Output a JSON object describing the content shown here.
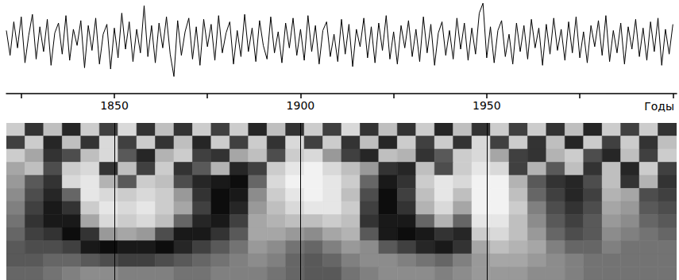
{
  "chart_data": [
    {
      "type": "line",
      "x": [
        1821,
        1822,
        1823,
        1824,
        1825,
        1826,
        1827,
        1828,
        1829,
        1830,
        1831,
        1832,
        1833,
        1834,
        1835,
        1836,
        1837,
        1838,
        1839,
        1840,
        1841,
        1842,
        1843,
        1844,
        1845,
        1846,
        1847,
        1848,
        1849,
        1850,
        1851,
        1852,
        1853,
        1854,
        1855,
        1856,
        1857,
        1858,
        1859,
        1860,
        1861,
        1862,
        1863,
        1864,
        1865,
        1866,
        1867,
        1868,
        1869,
        1870,
        1871,
        1872,
        1873,
        1874,
        1875,
        1876,
        1877,
        1878,
        1879,
        1880,
        1881,
        1882,
        1883,
        1884,
        1885,
        1886,
        1887,
        1888,
        1889,
        1890,
        1891,
        1892,
        1893,
        1894,
        1895,
        1896,
        1897,
        1898,
        1899,
        1900,
        1901,
        1902,
        1903,
        1904,
        1905,
        1906,
        1907,
        1908,
        1909,
        1910,
        1911,
        1912,
        1913,
        1914,
        1915,
        1916,
        1917,
        1918,
        1919,
        1920,
        1921,
        1922,
        1923,
        1924,
        1925,
        1926,
        1927,
        1928,
        1929,
        1930,
        1931,
        1932,
        1933,
        1934,
        1935,
        1936,
        1937,
        1938,
        1939,
        1940,
        1941,
        1942,
        1943,
        1944,
        1945,
        1946,
        1947,
        1948,
        1949,
        1950,
        1951,
        1952,
        1953,
        1954,
        1955,
        1956,
        1957,
        1958,
        1959,
        1960,
        1961,
        1962,
        1963,
        1964,
        1965,
        1966,
        1967,
        1968,
        1969,
        1970,
        1971,
        1972,
        1973,
        1974,
        1975,
        1976,
        1977,
        1978,
        1979,
        1980,
        1981,
        1982,
        1983,
        1984,
        1985,
        1986,
        1987,
        1988,
        1989,
        1990,
        1991,
        1992,
        1993,
        1994,
        1995,
        1996,
        1997,
        1998,
        1999,
        2000
      ],
      "values": [
        0.8,
        -1.2,
        1.5,
        -0.6,
        1.9,
        -1.8,
        0.4,
        2.1,
        -1.5,
        1.1,
        -0.9,
        1.7,
        -2.0,
        0.6,
        1.4,
        -1.1,
        2.0,
        -1.6,
        0.9,
        -0.4,
        1.6,
        -2.2,
        1.2,
        -0.8,
        1.8,
        -1.9,
        0.5,
        1.3,
        -2.3,
        1.0,
        -1.4,
        2.2,
        -0.7,
        1.5,
        -1.7,
        0.9,
        -1.0,
        2.8,
        -1.3,
        1.2,
        -1.8,
        1.4,
        -0.6,
        1.9,
        -1.1,
        -2.9,
        1.6,
        -1.2,
        0.7,
        1.8,
        -1.5,
        1.1,
        -2.0,
        1.7,
        -0.5,
        1.3,
        -1.6,
        2.0,
        -1.0,
        0.6,
        1.5,
        -1.9,
        0.8,
        -1.3,
        2.1,
        -0.9,
        1.0,
        -1.7,
        1.6,
        -0.4,
        -1.5,
        1.9,
        -1.0,
        0.7,
        -1.8,
        1.4,
        -0.6,
        1.8,
        -1.2,
        0.9,
        -1.6,
        2.0,
        -0.9,
        1.2,
        -1.9,
        0.8,
        1.5,
        -1.3,
        0.5,
        -1.7,
        1.7,
        -1.1,
        1.3,
        -2.1,
        0.9,
        -0.5,
        1.8,
        -1.4,
        1.1,
        -1.8,
        1.4,
        -0.8,
        2.0,
        -1.5,
        0.7,
        -1.9,
        1.2,
        -0.6,
        1.6,
        -1.3,
        0.9,
        -1.7,
        1.9,
        -1.0,
        1.3,
        -2.0,
        0.6,
        1.5,
        -1.2,
        0.8,
        -1.5,
        1.8,
        -0.7,
        1.4,
        -1.6,
        1.0,
        -1.1,
        2.2,
        3.0,
        -1.4,
        1.1,
        -1.8,
        0.8,
        1.6,
        -1.3,
        0.5,
        -1.9,
        1.4,
        -0.9,
        1.2,
        -1.5,
        1.7,
        -0.6,
        1.0,
        -2.0,
        1.3,
        -1.1,
        1.8,
        -0.8,
        0.9,
        -1.6,
        1.5,
        -1.0,
        1.9,
        -1.4,
        0.7,
        -1.8,
        1.2,
        -0.5,
        1.6,
        -1.2,
        2.0,
        -1.7,
        0.8,
        -1.0,
        1.4,
        -1.9,
        1.1,
        -0.7,
        1.7,
        -1.3,
        1.0,
        -1.6,
        1.5,
        -0.9,
        1.8,
        -2.0,
        0.9,
        -1.1,
        1.3
      ],
      "color": "#000000",
      "xlim": [
        1821,
        2001
      ],
      "xticks": [
        {
          "value": 1825,
          "label": null
        },
        1850,
        {
          "value": 1875,
          "label": null
        },
        1900,
        {
          "value": 1925,
          "label": null
        },
        1950,
        {
          "value": 1975,
          "label": null
        },
        {
          "value": 2000,
          "label": null
        }
      ],
      "x_label": "Годы",
      "ylim": [
        -3,
        3
      ],
      "tick_labels": "x"
    },
    {
      "type": "heatmap",
      "x_edges": [
        1821,
        1826,
        1831,
        1836,
        1841,
        1846,
        1851,
        1856,
        1861,
        1866,
        1871,
        1876,
        1881,
        1886,
        1891,
        1896,
        1901,
        1906,
        1911,
        1916,
        1921,
        1926,
        1931,
        1936,
        1941,
        1946,
        1951,
        1956,
        1961,
        1966,
        1971,
        1976,
        1981,
        1986,
        1991,
        1996,
        2001
      ],
      "y_edges": [
        0,
        1,
        2,
        3,
        4,
        5,
        6,
        7,
        8,
        9,
        10,
        11,
        12
      ],
      "cells": [
        [
          0.6,
          -0.6,
          0.5,
          -0.7,
          0.6,
          -0.5,
          0.7,
          -0.6,
          0.5,
          -0.6,
          0.6,
          -0.5,
          0.6,
          -0.7,
          0.5,
          -0.6,
          0.6,
          -0.5,
          0.7,
          -0.6,
          0.5,
          -0.6,
          0.6,
          -0.7,
          0.5,
          -0.6,
          0.6,
          -0.5,
          0.6,
          -0.6,
          0.5,
          -0.7,
          0.6,
          -0.5,
          0.6,
          -0.6
        ],
        [
          -0.5,
          0.6,
          -0.7,
          0.5,
          -0.6,
          0.7,
          -0.5,
          0.6,
          -0.6,
          0.5,
          -0.7,
          0.6,
          -0.5,
          0.6,
          -0.6,
          0.7,
          -0.5,
          0.6,
          -0.6,
          0.5,
          -0.7,
          0.6,
          -0.5,
          0.6,
          -0.6,
          0.7,
          -0.5,
          0.6,
          -0.6,
          0.5,
          -0.7,
          0.6,
          -0.5,
          0.6,
          -0.6,
          0.5
        ],
        [
          0.6,
          0.3,
          -0.6,
          -0.4,
          0.5,
          0.7,
          -0.3,
          -0.7,
          0.4,
          0.6,
          -0.5,
          -0.6,
          0.3,
          0.5,
          -0.4,
          0.6,
          0.7,
          0.2,
          -0.5,
          -0.7,
          0.5,
          0.4,
          -0.6,
          -0.3,
          0.6,
          0.7,
          0.3,
          -0.5,
          -0.6,
          0.4,
          0.6,
          -0.4,
          -0.7,
          0.5,
          -0.5,
          0.6
        ],
        [
          0.3,
          0.5,
          -0.4,
          0.6,
          0.7,
          -0.6,
          0.5,
          -0.5,
          0.6,
          -0.6,
          -0.3,
          0.4,
          -0.7,
          -0.5,
          0.6,
          0.8,
          0.9,
          0.7,
          0.5,
          0.2,
          -0.6,
          -0.7,
          0.5,
          -0.4,
          0.6,
          0.8,
          0.7,
          -0.5,
          0.4,
          -0.3,
          0.5,
          -0.6,
          0.5,
          -0.7,
          0.6,
          -0.5
        ],
        [
          0.2,
          -0.3,
          -0.6,
          0.7,
          0.8,
          0.4,
          -0.3,
          0.6,
          0.5,
          -0.4,
          -0.7,
          -0.8,
          -0.9,
          -0.2,
          0.7,
          0.9,
          0.9,
          0.8,
          0.6,
          -0.2,
          -0.8,
          -0.6,
          0.6,
          0.8,
          0.7,
          0.9,
          0.9,
          0.4,
          -0.3,
          -0.6,
          -0.7,
          -0.4,
          0.5,
          -0.6,
          0.4,
          -0.6
        ],
        [
          0.1,
          -0.4,
          -0.7,
          -0.2,
          0.8,
          0.7,
          0.6,
          0.7,
          0.6,
          0.2,
          -0.6,
          -0.9,
          -0.8,
          0.1,
          0.6,
          0.8,
          0.9,
          0.8,
          0.5,
          -0.4,
          -0.9,
          -0.5,
          0.5,
          0.8,
          0.5,
          0.9,
          0.9,
          0.5,
          -0.2,
          -0.5,
          -0.7,
          -0.5,
          0.4,
          0.3,
          -0.4,
          -0.5
        ],
        [
          0.0,
          -0.5,
          -0.8,
          -0.6,
          0.6,
          0.8,
          0.7,
          0.8,
          0.6,
          0.3,
          -0.5,
          -0.9,
          -0.7,
          0.2,
          0.5,
          0.7,
          0.8,
          0.8,
          0.6,
          -0.5,
          -0.9,
          -0.6,
          0.4,
          0.7,
          0.3,
          0.9,
          0.9,
          0.6,
          0.0,
          -0.4,
          -0.6,
          -0.4,
          0.3,
          0.2,
          -0.3,
          -0.4
        ],
        [
          -0.1,
          -0.6,
          -0.8,
          -0.8,
          0.3,
          0.7,
          0.6,
          0.7,
          0.5,
          -0.2,
          -0.7,
          -0.8,
          -0.5,
          0.3,
          0.4,
          0.5,
          0.5,
          0.6,
          0.5,
          -0.6,
          -0.8,
          -0.8,
          -0.2,
          0.4,
          -0.2,
          0.8,
          0.8,
          0.5,
          0.1,
          -0.3,
          -0.5,
          -0.3,
          0.2,
          0.1,
          -0.2,
          -0.3
        ],
        [
          -0.2,
          -0.5,
          -0.6,
          -0.9,
          -0.6,
          0.2,
          0.3,
          0.2,
          -0.4,
          -0.8,
          -0.8,
          -0.6,
          -0.3,
          0.3,
          0.3,
          0.2,
          0.1,
          0.3,
          0.4,
          -0.3,
          -0.8,
          -0.9,
          -0.8,
          -0.6,
          -0.7,
          0.6,
          0.7,
          0.5,
          0.2,
          -0.2,
          -0.4,
          -0.3,
          0.1,
          0.0,
          -0.1,
          -0.2
        ],
        [
          -0.3,
          -0.4,
          -0.4,
          -0.5,
          -0.8,
          -0.9,
          -0.8,
          -0.8,
          -0.9,
          -0.7,
          -0.5,
          -0.3,
          -0.1,
          0.2,
          0.1,
          -0.1,
          -0.2,
          0.0,
          0.2,
          0.1,
          -0.3,
          -0.5,
          -0.7,
          -0.8,
          -0.6,
          0.3,
          0.5,
          0.4,
          0.3,
          0.0,
          -0.2,
          -0.2,
          0.0,
          -0.1,
          -0.1,
          -0.1
        ],
        [
          -0.3,
          -0.3,
          -0.2,
          -0.2,
          -0.3,
          -0.4,
          -0.5,
          -0.5,
          -0.4,
          -0.3,
          -0.2,
          -0.1,
          0.0,
          0.1,
          0.0,
          -0.2,
          -0.3,
          -0.2,
          0.0,
          0.1,
          0.1,
          0.0,
          -0.1,
          -0.2,
          0.0,
          0.2,
          0.3,
          0.3,
          0.2,
          0.1,
          0.0,
          -0.1,
          -0.1,
          -0.1,
          -0.1,
          -0.1
        ],
        [
          -0.2,
          -0.2,
          -0.1,
          0.0,
          0.1,
          0.1,
          0.0,
          0.0,
          0.0,
          -0.1,
          -0.1,
          0.0,
          0.0,
          0.0,
          -0.1,
          -0.2,
          -0.3,
          -0.3,
          -0.1,
          0.0,
          0.1,
          0.1,
          0.1,
          0.0,
          0.1,
          0.2,
          0.2,
          0.2,
          0.1,
          0.1,
          0.0,
          -0.1,
          -0.1,
          -0.1,
          -0.1,
          -0.1
        ]
      ],
      "color_range": [
        -1,
        1
      ],
      "xlim": [
        1821,
        2001
      ],
      "ylim": [
        0,
        12
      ],
      "xticks": [
        1850,
        1900,
        1950
      ],
      "grid": true,
      "tick_labels": false
    }
  ]
}
